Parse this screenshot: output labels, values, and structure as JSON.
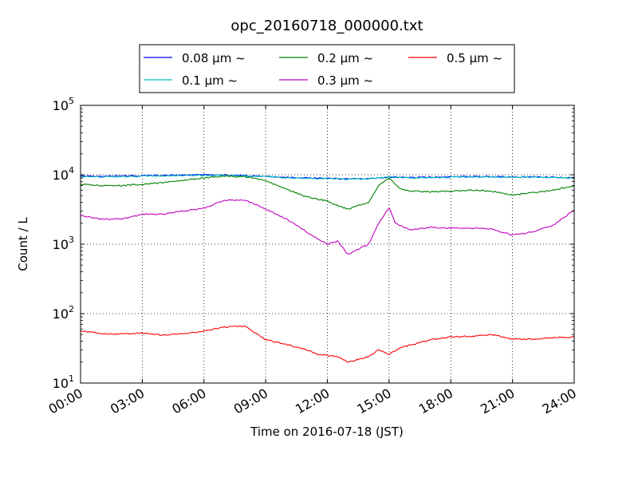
{
  "chart_data": {
    "type": "line",
    "title": "opc_20160718_000000.txt",
    "xlabel": "Time on 2016-07-18 (JST)",
    "ylabel": "Count / L",
    "yscale": "log",
    "xlim": [
      0,
      24
    ],
    "ylim": [
      10,
      100000
    ],
    "grid": true,
    "legend_position": "top-center",
    "x_ticks": [
      {
        "value": 0,
        "label": "00:00"
      },
      {
        "value": 3,
        "label": "03:00"
      },
      {
        "value": 6,
        "label": "06:00"
      },
      {
        "value": 9,
        "label": "09:00"
      },
      {
        "value": 12,
        "label": "12:00"
      },
      {
        "value": 15,
        "label": "15:00"
      },
      {
        "value": 18,
        "label": "18:00"
      },
      {
        "value": 21,
        "label": "21:00"
      },
      {
        "value": 24,
        "label": "24:00"
      }
    ],
    "y_ticks": [
      {
        "value": 10,
        "base": "10",
        "exp": "1"
      },
      {
        "value": 100,
        "base": "10",
        "exp": "2"
      },
      {
        "value": 1000,
        "base": "10",
        "exp": "3"
      },
      {
        "value": 10000,
        "base": "10",
        "exp": "4"
      },
      {
        "value": 100000,
        "base": "10",
        "exp": "5"
      }
    ],
    "series": [
      {
        "name": "0.08 μm ~",
        "color": "#0000ff",
        "points": [
          [
            0,
            9600
          ],
          [
            1,
            9500
          ],
          [
            2,
            9600
          ],
          [
            3,
            9700
          ],
          [
            4,
            9800
          ],
          [
            5,
            9900
          ],
          [
            6,
            10000
          ],
          [
            7,
            9900
          ],
          [
            8,
            9700
          ],
          [
            9,
            9500
          ],
          [
            10,
            9200
          ],
          [
            11,
            9000
          ],
          [
            12,
            8900
          ],
          [
            13,
            8700
          ],
          [
            14,
            8800
          ],
          [
            15,
            9200
          ],
          [
            16,
            9100
          ],
          [
            17,
            9200
          ],
          [
            18,
            9300
          ],
          [
            19,
            9400
          ],
          [
            20,
            9400
          ],
          [
            21,
            9300
          ],
          [
            22,
            9300
          ],
          [
            23,
            9200
          ],
          [
            24,
            9000
          ]
        ]
      },
      {
        "name": "0.1 μm ~",
        "color": "#00bfbf",
        "points": [
          [
            0,
            9400
          ],
          [
            1,
            9300
          ],
          [
            2,
            9400
          ],
          [
            3,
            9500
          ],
          [
            4,
            9600
          ],
          [
            5,
            9700
          ],
          [
            6,
            9800
          ],
          [
            7,
            9800
          ],
          [
            8,
            9600
          ],
          [
            9,
            9400
          ],
          [
            10,
            9100
          ],
          [
            11,
            8900
          ],
          [
            12,
            8800
          ],
          [
            13,
            8600
          ],
          [
            14,
            8700
          ],
          [
            15,
            9300
          ],
          [
            16,
            9000
          ],
          [
            17,
            9100
          ],
          [
            18,
            9200
          ],
          [
            19,
            9300
          ],
          [
            20,
            9300
          ],
          [
            21,
            9200
          ],
          [
            22,
            9200
          ],
          [
            23,
            9100
          ],
          [
            24,
            8900
          ]
        ]
      },
      {
        "name": "0.2 μm ~",
        "color": "#008000",
        "points": [
          [
            0,
            7300
          ],
          [
            1,
            7000
          ],
          [
            2,
            7000
          ],
          [
            3,
            7300
          ],
          [
            4,
            7700
          ],
          [
            5,
            8300
          ],
          [
            6,
            9000
          ],
          [
            7,
            9600
          ],
          [
            8,
            9300
          ],
          [
            9,
            8200
          ],
          [
            10,
            6200
          ],
          [
            11,
            4800
          ],
          [
            12,
            4200
          ],
          [
            12.5,
            3600
          ],
          [
            13,
            3200
          ],
          [
            14,
            4000
          ],
          [
            14.5,
            7000
          ],
          [
            15,
            9000
          ],
          [
            15.5,
            6400
          ],
          [
            16,
            5800
          ],
          [
            17,
            5700
          ],
          [
            18,
            5800
          ],
          [
            19,
            6000
          ],
          [
            20,
            5800
          ],
          [
            21,
            5100
          ],
          [
            22,
            5500
          ],
          [
            23,
            6000
          ],
          [
            24,
            7000
          ]
        ]
      },
      {
        "name": "0.3 μm ~",
        "color": "#bf00bf",
        "points": [
          [
            0,
            2600
          ],
          [
            1,
            2300
          ],
          [
            2,
            2300
          ],
          [
            3,
            2700
          ],
          [
            4,
            2700
          ],
          [
            5,
            3000
          ],
          [
            6,
            3300
          ],
          [
            7,
            4300
          ],
          [
            8,
            4300
          ],
          [
            9,
            3200
          ],
          [
            10,
            2300
          ],
          [
            11,
            1500
          ],
          [
            11.5,
            1200
          ],
          [
            12,
            1000
          ],
          [
            12.5,
            1100
          ],
          [
            13,
            720
          ],
          [
            14,
            1000
          ],
          [
            14.5,
            2000
          ],
          [
            15,
            3400
          ],
          [
            15.3,
            2000
          ],
          [
            16,
            1600
          ],
          [
            17,
            1750
          ],
          [
            18,
            1700
          ],
          [
            19,
            1700
          ],
          [
            20,
            1650
          ],
          [
            21,
            1350
          ],
          [
            22,
            1500
          ],
          [
            23,
            1900
          ],
          [
            24,
            3100
          ]
        ]
      },
      {
        "name": "0.5 μm ~",
        "color": "#ff0000",
        "points": [
          [
            0,
            57
          ],
          [
            1,
            51
          ],
          [
            2,
            51
          ],
          [
            3,
            52
          ],
          [
            4,
            49
          ],
          [
            5,
            51
          ],
          [
            6,
            56
          ],
          [
            7,
            64
          ],
          [
            8,
            65
          ],
          [
            9,
            42
          ],
          [
            10,
            36
          ],
          [
            11,
            30
          ],
          [
            11.5,
            26
          ],
          [
            12,
            25
          ],
          [
            12.5,
            24
          ],
          [
            13,
            20
          ],
          [
            14,
            24
          ],
          [
            14.5,
            30
          ],
          [
            15,
            26
          ],
          [
            15.5,
            32
          ],
          [
            16,
            35
          ],
          [
            17,
            42
          ],
          [
            18,
            46
          ],
          [
            19,
            47
          ],
          [
            20,
            50
          ],
          [
            21,
            43
          ],
          [
            22,
            43
          ],
          [
            23,
            45
          ],
          [
            24,
            46
          ]
        ]
      }
    ]
  }
}
